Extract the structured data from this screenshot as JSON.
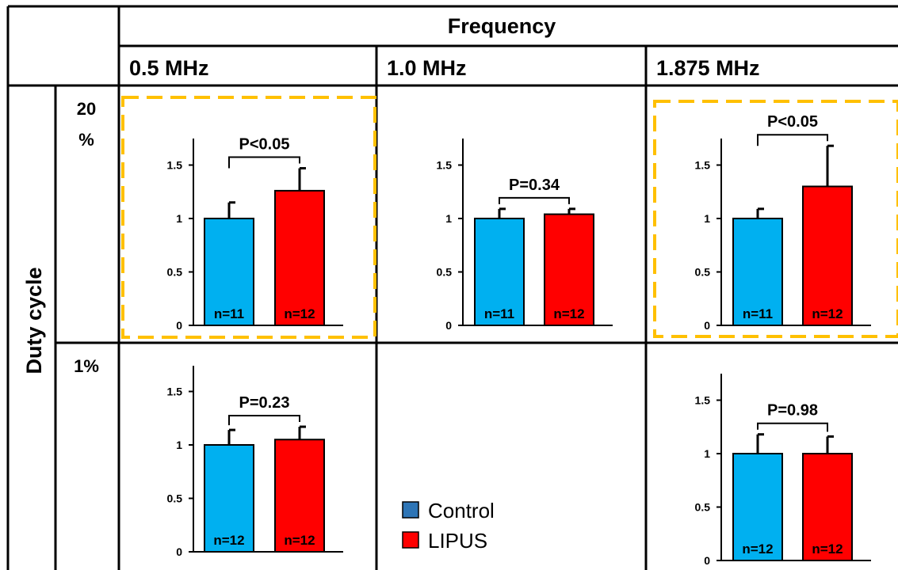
{
  "header": {
    "frequency_label": "Frequency",
    "columns": [
      "0.5 MHz",
      "1.0 MHz",
      "1.875 MHz"
    ],
    "duty_cycle_label": "Duty cycle",
    "rows": [
      "20 %",
      "1%"
    ]
  },
  "legend": [
    {
      "label": "Control",
      "color": "#2e75b6"
    },
    {
      "label": "LIPUS",
      "color": "#ff0000"
    }
  ],
  "colors": {
    "control": "#00b0f0",
    "lipus": "#ff0000",
    "highlight": "#ffc000"
  },
  "chart_data": [
    {
      "type": "bar",
      "row": "20 %",
      "column": "0.5 MHz",
      "highlighted": true,
      "categories": [
        "Control",
        "LIPUS"
      ],
      "values": [
        1.0,
        1.26
      ],
      "errors": [
        0.15,
        0.21
      ],
      "n_labels": [
        "n=11",
        "n=12"
      ],
      "annotation": "P<0.05",
      "yticks": [
        "0",
        "0.5",
        "1",
        "1.5"
      ],
      "ylim": [
        0,
        1.75
      ]
    },
    {
      "type": "bar",
      "row": "20 %",
      "column": "1.0 MHz",
      "highlighted": false,
      "categories": [
        "Control",
        "LIPUS"
      ],
      "values": [
        1.0,
        1.04
      ],
      "errors": [
        0.09,
        0.05
      ],
      "n_labels": [
        "n=11",
        "n=12"
      ],
      "annotation": "P=0.34",
      "yticks": [
        "0",
        "0.5",
        "1",
        "1.5"
      ],
      "ylim": [
        0,
        1.75
      ]
    },
    {
      "type": "bar",
      "row": "20 %",
      "column": "1.875 MHz",
      "highlighted": true,
      "categories": [
        "Control",
        "LIPUS"
      ],
      "values": [
        1.0,
        1.3
      ],
      "errors": [
        0.09,
        0.38
      ],
      "n_labels": [
        "n=11",
        "n=12"
      ],
      "annotation": "P<0.05",
      "yticks": [
        "0",
        "0.5",
        "1",
        "1.5"
      ],
      "ylim": [
        0,
        1.75
      ]
    },
    {
      "type": "bar",
      "row": "1%",
      "column": "0.5 MHz",
      "highlighted": false,
      "categories": [
        "Control",
        "LIPUS"
      ],
      "values": [
        1.0,
        1.05
      ],
      "errors": [
        0.14,
        0.12
      ],
      "n_labels": [
        "n=12",
        "n=12"
      ],
      "annotation": "P=0.23",
      "yticks": [
        "0",
        "0.5",
        "1",
        "1.5"
      ],
      "ylim": [
        0,
        1.75
      ]
    },
    {
      "type": "bar",
      "row": "1%",
      "column": "1.875 MHz",
      "highlighted": false,
      "categories": [
        "Control",
        "LIPUS"
      ],
      "values": [
        1.0,
        1.0
      ],
      "errors": [
        0.18,
        0.16
      ],
      "n_labels": [
        "n=12",
        "n=12"
      ],
      "annotation": "P=0.98",
      "yticks": [
        "0",
        "0.5",
        "1",
        "1.5"
      ],
      "ylim": [
        0,
        1.75
      ]
    }
  ]
}
